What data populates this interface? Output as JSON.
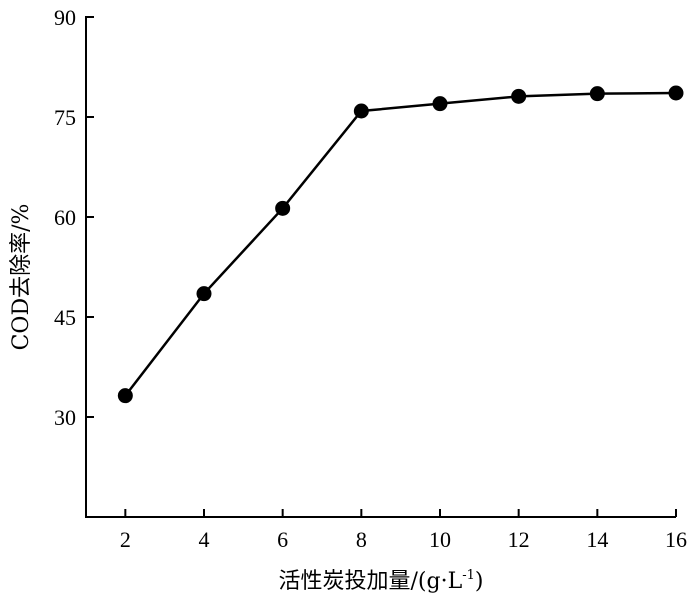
{
  "chart_data": {
    "type": "line",
    "title": "",
    "xlabel": "活性炭投加量/(g·L",
    "xlabel_sup": "-1",
    "xlabel_suffix": ")",
    "ylabel": "COD去除率/%",
    "x": [
      2,
      4,
      6,
      8,
      10,
      12,
      14,
      16
    ],
    "series": [
      {
        "values": [
          33.2,
          48.5,
          61.3,
          75.9,
          77.0,
          78.1,
          78.5,
          78.6
        ]
      }
    ],
    "xticks": [
      "2",
      "4",
      "6",
      "8",
      "10",
      "12",
      "14",
      "16"
    ],
    "yticks": [
      "30",
      "45",
      "60",
      "75",
      "90"
    ],
    "xlim": [
      1,
      16
    ],
    "ylim": [
      15,
      90
    ],
    "grid": false,
    "line_color": "#000000",
    "marker": "filled-circle"
  }
}
